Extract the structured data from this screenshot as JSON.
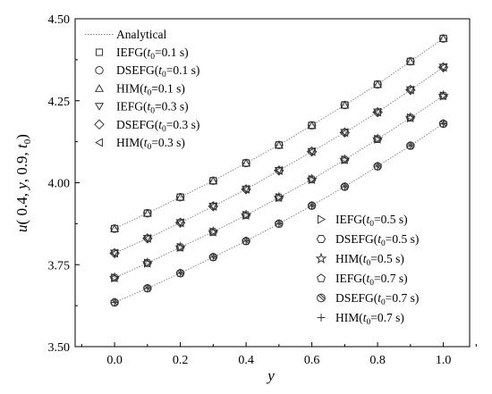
{
  "chart_data": {
    "type": "line",
    "xlabel": "y",
    "ylabel": "u(0.4, y, 0.9, t0)",
    "xlim": [
      -0.12,
      1.08
    ],
    "ylim": [
      3.5,
      4.5
    ],
    "xticks": [
      "0.0",
      "0.2",
      "0.4",
      "0.6",
      "0.8",
      "1.0"
    ],
    "yticks": [
      "3.50",
      "3.75",
      "4.00",
      "4.25",
      "4.50"
    ],
    "x": [
      0.0,
      0.1,
      0.2,
      0.3,
      0.4,
      0.5,
      0.6,
      0.7,
      0.8,
      0.9,
      1.0
    ],
    "analytical_label": "Analytical",
    "analytical": [
      [
        3.86,
        3.907,
        3.956,
        4.006,
        4.06,
        4.115,
        4.175,
        4.237,
        4.3,
        4.37,
        4.44
      ],
      [
        3.785,
        3.83,
        3.878,
        3.928,
        3.98,
        4.037,
        4.095,
        4.153,
        4.215,
        4.283,
        4.352
      ],
      [
        3.71,
        3.755,
        3.803,
        3.85,
        3.901,
        3.955,
        4.01,
        4.07,
        4.133,
        4.198,
        4.265
      ],
      [
        3.635,
        3.678,
        3.724,
        3.773,
        3.822,
        3.875,
        3.93,
        3.988,
        4.05,
        4.113,
        4.18
      ]
    ],
    "series": [
      {
        "name": "IEFG",
        "t0": "0.1",
        "marker": "square",
        "curve": 0
      },
      {
        "name": "DSEFG",
        "t0": "0.1",
        "marker": "circle",
        "curve": 0
      },
      {
        "name": "HIM",
        "t0": "0.1",
        "marker": "triangle-up",
        "curve": 0
      },
      {
        "name": "IEFG",
        "t0": "0.3",
        "marker": "triangle-down",
        "curve": 1
      },
      {
        "name": "DSEFG",
        "t0": "0.3",
        "marker": "diamond",
        "curve": 1
      },
      {
        "name": "HIM",
        "t0": "0.3",
        "marker": "triangle-left",
        "curve": 1
      },
      {
        "name": "IEFG",
        "t0": "0.5",
        "marker": "triangle-right",
        "curve": 2
      },
      {
        "name": "DSEFG",
        "t0": "0.5",
        "marker": "hexagon",
        "curve": 2
      },
      {
        "name": "HIM",
        "t0": "0.5",
        "marker": "star",
        "curve": 2
      },
      {
        "name": "IEFG",
        "t0": "0.7",
        "marker": "pentagon",
        "curve": 3
      },
      {
        "name": "DSEFG",
        "t0": "0.7",
        "marker": "circle-cross",
        "curve": 3
      },
      {
        "name": "HIM",
        "t0": "0.7",
        "marker": "plus",
        "curve": 3
      }
    ]
  }
}
